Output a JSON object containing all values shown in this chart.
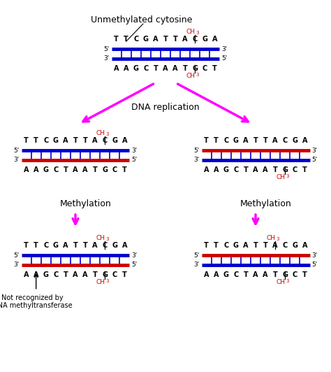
{
  "bg_color": "#ffffff",
  "blue_color": "#0000cc",
  "red_color": "#cc0000",
  "magenta_color": "#ff00ff",
  "black_color": "#000000",
  "seq_top": "TTCGATTACGA",
  "seq_bot": "AAGCTAATGCT",
  "title": "Unmethylated cytosine",
  "dna_replication_label": "DNA replication",
  "methylation_label": "Methylation",
  "not_recognized_label": "Not recognized by\nDNA methyltransferase",
  "fig_w": 4.74,
  "fig_h": 5.32,
  "dpi": 100
}
